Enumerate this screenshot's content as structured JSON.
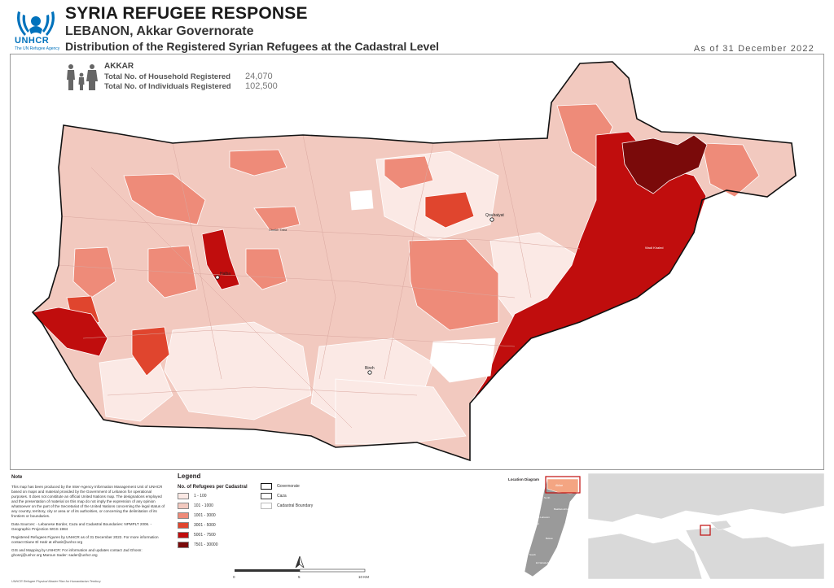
{
  "header": {
    "logo_text": "UNHCR",
    "logo_tagline": "The UN Refugee Agency",
    "title": "SYRIA REFUGEE RESPONSE",
    "subtitle": "LEBANON, Akkar Governorate",
    "subtitle2": "Distribution of the Registered Syrian Refugees at the Cadastral Level",
    "as_of": "As of 31 December 2022"
  },
  "summary": {
    "area": "AKKAR",
    "households_label": "Total No. of Household Registered",
    "households_value": "24,070",
    "individuals_label": "Total No. of Individuals Registered",
    "individuals_value": "102,500"
  },
  "note": {
    "title": "Note",
    "paragraphs": [
      "This map has been produced by the Inter-Agency Information Management Unit of UNHCR based on maps and material provided by the Government of Lebanon for operational purposes. It does not constitute an official United Nations map. The designations employed and the presentation of material on this map do not imply the expression of any opinion whatsoever on the part of the Secretariat of the United Nations concerning the legal status of any country, territory, city or area or of its authorities, or concerning the delimitation of its frontiers or boundaries.",
      "Data Sources: - Lebanese Border, Caza and Cadastral Boundaries: NPMPLT 2006. - Geographic Projection WGS 1984",
      "Registered Refugees Figures by UNHCR as of 31 December 2022. For more information contact Diane El Hatir at elhatir@unhcr.org",
      "GIS and Mapping by UNHCR: For information and updates contact Jad Ghosn: ghosnj@unhcr.org Maroun Sader: sader@unhcr.org"
    ]
  },
  "legend": {
    "title": "Legend",
    "subtitle": "No. of Refugees per Cadastral",
    "classes": [
      {
        "label": "1 - 100",
        "color": "#fbe9e5"
      },
      {
        "label": "101 - 1000",
        "color": "#f2c9bf"
      },
      {
        "label": "1001 - 3000",
        "color": "#ee8b79"
      },
      {
        "label": "3001 - 5000",
        "color": "#e0452e"
      },
      {
        "label": "5001 - 7500",
        "color": "#c00d0d"
      },
      {
        "label": "7501 - 30000",
        "color": "#7a0a0a"
      }
    ],
    "boundaries": [
      {
        "label": "Governorate"
      },
      {
        "label": "Caza"
      },
      {
        "label": "Cadastral Boundary"
      }
    ]
  },
  "map_labels": {
    "city_halba": "Halba",
    "city_qoubaiyat": "Qoubaiyat",
    "city_bireh": "Bireh",
    "place_cheikh": "Cheikh Taba",
    "place_hermel": "Wadi Khaled"
  },
  "location_diagram": {
    "title": "Location Diagram",
    "areas": [
      "Akkar",
      "North",
      "Baalbek-El Hermel",
      "Mount Lebanon",
      "Beirut",
      "Bekaa",
      "South",
      "El Nabatieh"
    ]
  },
  "scale": {
    "labels": [
      "0",
      "5",
      "10 KM"
    ]
  },
  "footer": "UNHCR Refugee Physical Master Plan for Humanitarian Territory",
  "colors": {
    "c1": "#fbe9e5",
    "c2": "#f2c9bf",
    "c3": "#ee8b79",
    "c4": "#e0452e",
    "c5": "#c00d0d",
    "c6": "#7a0a0a",
    "unhcr_blue": "#0072bc"
  }
}
